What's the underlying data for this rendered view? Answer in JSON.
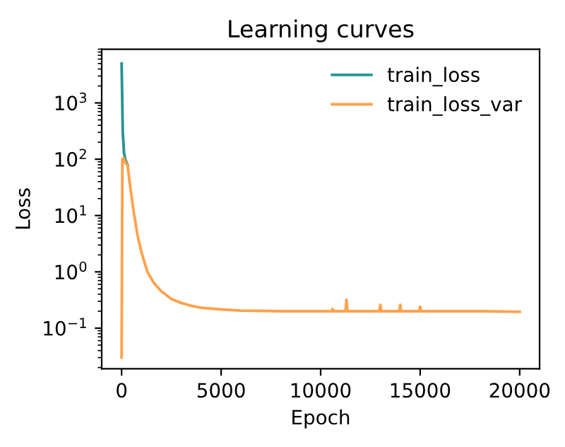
{
  "chart_data": {
    "type": "line",
    "title": "Learning curves",
    "xlabel": "Epoch",
    "ylabel": "Loss",
    "log": "y",
    "legend": "top right",
    "grid": false,
    "xlim": [
      -1000,
      21000
    ],
    "xticks": [
      0,
      5000,
      10000,
      15000,
      20000
    ],
    "ylim": [
      0.019,
      9000
    ],
    "yticks": [
      {
        "value": 0.1,
        "label": "10$^{−1}$"
      },
      {
        "value": 1,
        "label": "10$^{0}$"
      },
      {
        "value": 10,
        "label": "10$^{1}$"
      },
      {
        "value": 100,
        "label": "10$^{2}$"
      },
      {
        "value": 1000,
        "label": "10$^{3}$"
      }
    ],
    "series": [
      {
        "name": "train_loss",
        "color": "#2a9490",
        "x": [
          0,
          60,
          120,
          200,
          300
        ],
        "values": [
          5000,
          300,
          130,
          95,
          80
        ]
      },
      {
        "name": "train_loss_var",
        "color": "#ffa24c",
        "x": [
          0,
          40,
          100,
          200,
          300,
          400,
          600,
          800,
          1000,
          1300,
          1600,
          2000,
          2500,
          3000,
          3500,
          4000,
          5000,
          6000,
          8000,
          10000,
          10550,
          10600,
          10650,
          11000,
          11250,
          11300,
          11350,
          12000,
          12950,
          13000,
          13050,
          13950,
          14000,
          14050,
          14950,
          15000,
          15050,
          16000,
          18000,
          20000
        ],
        "values": [
          0.03,
          100,
          105,
          85,
          80,
          40,
          12,
          4.5,
          2.2,
          1.0,
          0.65,
          0.45,
          0.33,
          0.28,
          0.25,
          0.23,
          0.215,
          0.205,
          0.2,
          0.2,
          0.2,
          0.22,
          0.2,
          0.2,
          0.2,
          0.32,
          0.2,
          0.2,
          0.2,
          0.26,
          0.2,
          0.2,
          0.26,
          0.2,
          0.2,
          0.24,
          0.2,
          0.2,
          0.2,
          0.195
        ]
      }
    ]
  }
}
